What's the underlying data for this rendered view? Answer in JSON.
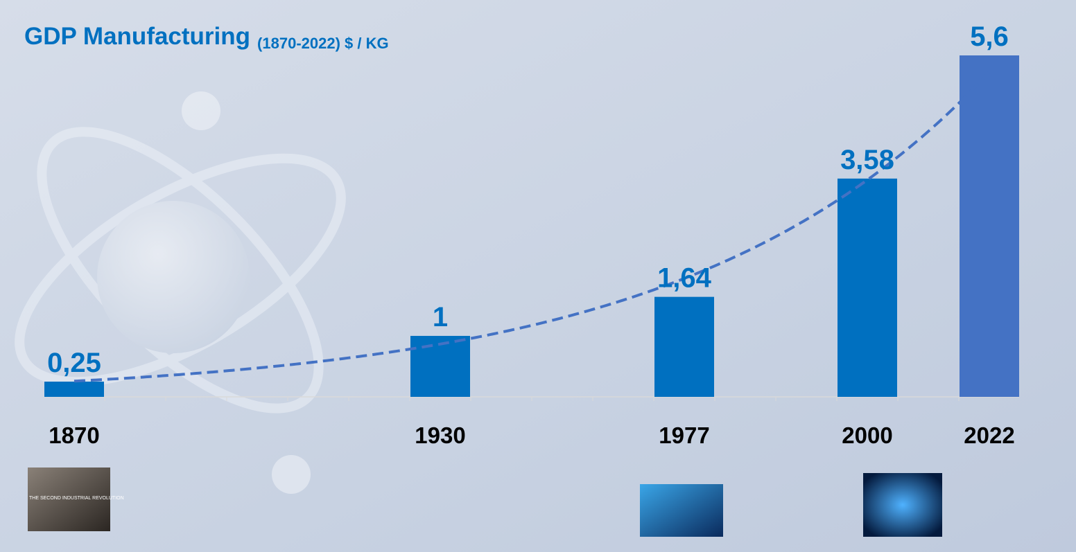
{
  "chart_data": {
    "type": "bar",
    "title": "GDP Manufacturing",
    "subtitle": "(1870-2022) $ / KG",
    "categories": [
      "1870",
      null,
      null,
      null,
      null,
      null,
      "1930",
      null,
      null,
      null,
      "1977",
      null,
      null,
      "2000",
      null,
      "2022"
    ],
    "values": [
      0.25,
      null,
      null,
      null,
      null,
      null,
      1,
      null,
      null,
      null,
      1.64,
      null,
      null,
      3.58,
      null,
      5.6
    ],
    "value_labels": [
      "0,25",
      null,
      null,
      null,
      null,
      null,
      "1",
      null,
      null,
      null,
      "1,64",
      null,
      null,
      "3,58",
      null,
      "5,6"
    ],
    "color": "#0070c0",
    "last_color": "#4472c4",
    "trendline_color": "#4472c4",
    "ylim": [
      0,
      5.6
    ],
    "annotations": [
      "THE SECOND INDUSTRIAL REVOLUTION"
    ]
  }
}
